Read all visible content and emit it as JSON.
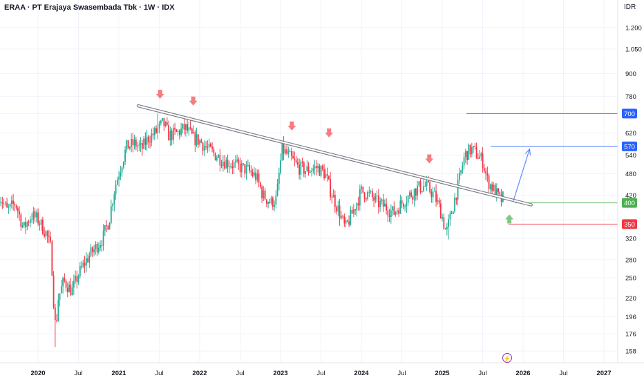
{
  "header": {
    "title": "ERAA · PT Erajaya Swasembada Tbk · 1W · IDX",
    "currency": "IDR"
  },
  "colors": {
    "up": "#22ab94",
    "down": "#f23645",
    "trendline": "#9598a1",
    "resistance_down_arrow": "#f77c80",
    "support_up_arrow": "#81c784",
    "target_line": "#2962ff",
    "support_line": "#4caf50",
    "stop_line": "#f23645",
    "grid": "#f0f3fa",
    "text": "#131722",
    "event_icon": "#9c27b0"
  },
  "chart_data": {
    "type": "candlestick",
    "title": "ERAA · PT Erajaya Swasembada Tbk · 1W · IDX",
    "y_scale": "log",
    "ylim": [
      150,
      1400
    ],
    "y_ticks": [
      1200,
      1050,
      900,
      780,
      700,
      620,
      540,
      480,
      420,
      360,
      320,
      280,
      250,
      220,
      196,
      176,
      158
    ],
    "y_tick_labels": [
      "1.200",
      "1.050",
      "900",
      "780",
      "700",
      "620",
      "540",
      "480",
      "420",
      "",
      "320",
      "280",
      "250",
      "220",
      "196",
      "176",
      "158"
    ],
    "x_ticks": [
      {
        "label": "2020",
        "t": 2020.0,
        "bold": true
      },
      {
        "label": "Jul",
        "t": 2020.5,
        "bold": false
      },
      {
        "label": "2021",
        "t": 2021.0,
        "bold": true
      },
      {
        "label": "Jul",
        "t": 2021.5,
        "bold": false
      },
      {
        "label": "2022",
        "t": 2022.0,
        "bold": true
      },
      {
        "label": "Jul",
        "t": 2022.5,
        "bold": false
      },
      {
        "label": "2023",
        "t": 2023.0,
        "bold": true
      },
      {
        "label": "Jul",
        "t": 2023.5,
        "bold": false
      },
      {
        "label": "2024",
        "t": 2024.0,
        "bold": true
      },
      {
        "label": "Jul",
        "t": 2024.5,
        "bold": false
      },
      {
        "label": "2025",
        "t": 2025.0,
        "bold": true
      },
      {
        "label": "Jul",
        "t": 2025.5,
        "bold": false
      },
      {
        "label": "2026",
        "t": 2026.0,
        "bold": true
      },
      {
        "label": "Jul",
        "t": 2026.5,
        "bold": false
      },
      {
        "label": "2027",
        "t": 2027.0,
        "bold": true
      }
    ],
    "price_path": [
      [
        2019.52,
        420
      ],
      [
        2019.62,
        380
      ],
      [
        2019.72,
        400
      ],
      [
        2019.82,
        340
      ],
      [
        2019.92,
        370
      ],
      [
        2020.0,
        360
      ],
      [
        2020.1,
        330
      ],
      [
        2020.16,
        300
      ],
      [
        2020.2,
        200
      ],
      [
        2020.22,
        180
      ],
      [
        2020.25,
        220
      ],
      [
        2020.32,
        245
      ],
      [
        2020.42,
        230
      ],
      [
        2020.5,
        255
      ],
      [
        2020.6,
        280
      ],
      [
        2020.7,
        300
      ],
      [
        2020.8,
        320
      ],
      [
        2020.88,
        360
      ],
      [
        2020.95,
        440
      ],
      [
        2021.02,
        500
      ],
      [
        2021.1,
        570
      ],
      [
        2021.2,
        580
      ],
      [
        2021.28,
        560
      ],
      [
        2021.36,
        600
      ],
      [
        2021.45,
        620
      ],
      [
        2021.55,
        660
      ],
      [
        2021.62,
        610
      ],
      [
        2021.72,
        620
      ],
      [
        2021.82,
        640
      ],
      [
        2021.92,
        600
      ],
      [
        2022.0,
        590
      ],
      [
        2022.1,
        560
      ],
      [
        2022.2,
        540
      ],
      [
        2022.3,
        520
      ],
      [
        2022.4,
        510
      ],
      [
        2022.5,
        500
      ],
      [
        2022.6,
        490
      ],
      [
        2022.7,
        470
      ],
      [
        2022.78,
        420
      ],
      [
        2022.88,
        400
      ],
      [
        2022.95,
        410
      ],
      [
        2023.02,
        560
      ],
      [
        2023.12,
        530
      ],
      [
        2023.22,
        500
      ],
      [
        2023.32,
        490
      ],
      [
        2023.45,
        500
      ],
      [
        2023.55,
        480
      ],
      [
        2023.62,
        430
      ],
      [
        2023.72,
        380
      ],
      [
        2023.8,
        340
      ],
      [
        2023.9,
        380
      ],
      [
        2024.0,
        430
      ],
      [
        2024.1,
        420
      ],
      [
        2024.2,
        400
      ],
      [
        2024.3,
        390
      ],
      [
        2024.4,
        375
      ],
      [
        2024.5,
        400
      ],
      [
        2024.6,
        420
      ],
      [
        2024.7,
        440
      ],
      [
        2024.8,
        445
      ],
      [
        2024.9,
        420
      ],
      [
        2024.98,
        380
      ],
      [
        2025.05,
        330
      ],
      [
        2025.12,
        380
      ],
      [
        2025.2,
        450
      ],
      [
        2025.28,
        540
      ],
      [
        2025.36,
        560
      ],
      [
        2025.42,
        545
      ],
      [
        2025.5,
        520
      ],
      [
        2025.56,
        460
      ],
      [
        2025.62,
        440
      ],
      [
        2025.68,
        420
      ],
      [
        2025.72,
        405
      ],
      [
        2025.76,
        415
      ]
    ],
    "wick_extremes": [
      {
        "t": 2020.21,
        "value": 162
      },
      {
        "t": 2021.48,
        "value": 700
      },
      {
        "t": 2021.88,
        "value": 680
      },
      {
        "t": 2025.07,
        "value": 318
      }
    ],
    "trendline": {
      "start": {
        "t": 2021.24,
        "value": 735
      },
      "end": {
        "t": 2026.1,
        "value": 395
      }
    },
    "resistance_touches": [
      {
        "t": 2021.51,
        "value": 720
      },
      {
        "t": 2021.92,
        "value": 690
      },
      {
        "t": 2023.14,
        "value": 590
      },
      {
        "t": 2023.6,
        "value": 565
      },
      {
        "t": 2024.84,
        "value": 480
      }
    ],
    "support_touch": {
      "t": 2025.83,
      "value": 385
    },
    "projection_arrow": {
      "start": {
        "t": 2025.88,
        "value": 405
      },
      "end": {
        "t": 2026.08,
        "value": 560
      }
    },
    "horizontal_levels": [
      {
        "label": "700",
        "value": 700,
        "start_t": 2025.3,
        "color_key": "target_line"
      },
      {
        "label": "570",
        "value": 570,
        "start_t": 2025.6,
        "color_key": "target_line"
      },
      {
        "label": "400",
        "value": 400,
        "start_t": 2025.9,
        "color_key": "support_line"
      },
      {
        "label": "350",
        "value": 350,
        "start_t": 2025.82,
        "color_key": "stop_line"
      }
    ]
  }
}
